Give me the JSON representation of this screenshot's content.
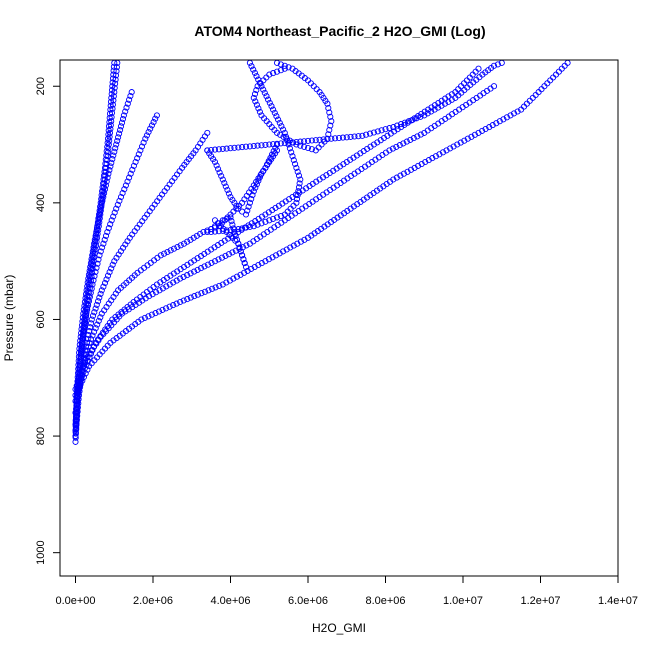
{
  "chart_data": {
    "type": "scatter",
    "title": "ATOM4 Northeast_Pacific_2 H2O_GMI (Log)",
    "xlabel": "H2O_GMI",
    "ylabel": "Pressure (mbar)",
    "xlim": [
      -400000,
      14000000
    ],
    "ylim": [
      1040,
      155
    ],
    "y_reversed": true,
    "x_ticks": [
      0,
      2000000,
      4000000,
      6000000,
      8000000,
      10000000,
      12000000,
      14000000
    ],
    "x_tick_labels": [
      "0.0e+00",
      "2.0e+06",
      "4.0e+06",
      "6.0e+06",
      "8.0e+06",
      "1.0e+07",
      "1.2e+07",
      "1.4e+07"
    ],
    "y_ticks": [
      200,
      400,
      600,
      800,
      1000
    ],
    "y_tick_labels": [
      "200",
      "400",
      "600",
      "800",
      "1000"
    ],
    "marker": "open-circle",
    "color": "#0000ff",
    "grid": false,
    "series": [
      {
        "x": [
          0,
          40000,
          90000,
          160000,
          260000,
          380000,
          520000,
          650000,
          760000,
          840000,
          900000,
          950000,
          1000000
        ],
        "y": [
          810,
          760,
          700,
          640,
          580,
          520,
          460,
          400,
          340,
          290,
          240,
          200,
          160
        ]
      },
      {
        "x": [
          0,
          50000,
          120000,
          220000,
          340000,
          470000,
          600000,
          720000,
          830000,
          920000,
          1000000,
          1080000
        ],
        "y": [
          800,
          740,
          680,
          620,
          560,
          500,
          440,
          380,
          320,
          260,
          210,
          160
        ]
      },
      {
        "x": [
          0,
          40000,
          100000,
          200000,
          330000,
          480000,
          650000,
          850000,
          1050000,
          1250000,
          1450000
        ],
        "y": [
          790,
          720,
          650,
          590,
          530,
          470,
          410,
          350,
          300,
          250,
          210
        ]
      },
      {
        "x": [
          0,
          60000,
          150000,
          280000,
          440000,
          620000,
          820000,
          1050000,
          1300000,
          1550000,
          1800000,
          2100000
        ],
        "y": [
          780,
          710,
          650,
          590,
          540,
          490,
          450,
          410,
          370,
          330,
          290,
          250
        ]
      },
      {
        "x": [
          0,
          90000,
          230000,
          420000,
          680000,
          1000000,
          1400000,
          1850000,
          2300000,
          2750000,
          3100000,
          3400000
        ],
        "y": [
          800,
          730,
          660,
          600,
          550,
          500,
          460,
          420,
          380,
          340,
          310,
          280
        ]
      },
      {
        "x": [
          0,
          140000,
          360000,
          680000,
          1100000,
          1600000,
          2200000,
          2800000,
          3300000,
          3700000,
          4000000,
          4300000,
          4600000,
          4900000,
          5200000
        ],
        "y": [
          760,
          700,
          640,
          590,
          550,
          520,
          490,
          470,
          450,
          440,
          420,
          400,
          370,
          340,
          300
        ]
      },
      {
        "x": [
          0,
          200000,
          520000,
          950000,
          1500000,
          2100000,
          2800000,
          3500000,
          4200000,
          4900000,
          5600000,
          6300000,
          7000000,
          7700000,
          8400000,
          9100000,
          9800000,
          10400000
        ],
        "y": [
          740,
          690,
          640,
          600,
          570,
          540,
          510,
          480,
          450,
          420,
          390,
          360,
          330,
          300,
          270,
          240,
          210,
          170
        ]
      },
      {
        "x": [
          0,
          250000,
          650000,
          1200000,
          1900000,
          2700000,
          3600000,
          4500000,
          5400000,
          6300000,
          7200000,
          8100000,
          9000000,
          9900000,
          10800000
        ],
        "y": [
          720,
          670,
          630,
          590,
          560,
          530,
          500,
          470,
          430,
          390,
          350,
          310,
          280,
          240,
          200
        ]
      },
      {
        "x": [
          0,
          350000,
          900000,
          1700000,
          2700000,
          3800000,
          4900000,
          6000000,
          7100000,
          8200000,
          9300000,
          10400000,
          11500000,
          12700000
        ],
        "y": [
          730,
          680,
          640,
          600,
          570,
          540,
          500,
          460,
          410,
          360,
          320,
          280,
          240,
          160
        ]
      },
      {
        "x": [
          3400000,
          4200000,
          5000000,
          5800000,
          6600000,
          7400000,
          8200000,
          9000000,
          9800000,
          10500000,
          10800000,
          11000000
        ],
        "y": [
          310,
          305,
          300,
          295,
          290,
          285,
          270,
          250,
          220,
          180,
          165,
          160
        ]
      },
      {
        "x": [
          5200000,
          5600000,
          6000000,
          6300000,
          6500000,
          6600000,
          6500000,
          6200000,
          5700000,
          5200000,
          4800000,
          4600000,
          4700000,
          5000000,
          5400000
        ],
        "y": [
          160,
          170,
          190,
          210,
          230,
          260,
          290,
          310,
          300,
          280,
          250,
          220,
          200,
          180,
          170
        ]
      },
      {
        "x": [
          4500000,
          4800000,
          5100000,
          5400000,
          5600000,
          5800000,
          5700000,
          5400000,
          5000000,
          4600000,
          4200000,
          3800000,
          3500000
        ],
        "y": [
          160,
          200,
          240,
          280,
          320,
          360,
          400,
          420,
          430,
          440,
          445,
          448,
          450
        ]
      },
      {
        "x": [
          3400000,
          3600000,
          3800000,
          4000000,
          4100000,
          4200000,
          4300000,
          4400000,
          4200000,
          3900000,
          3600000
        ],
        "y": [
          450,
          440,
          430,
          425,
          450,
          470,
          490,
          510,
          470,
          450,
          430
        ]
      },
      {
        "x": [
          3400000,
          3600000,
          3800000,
          4000000,
          4200000,
          4400000,
          4600000,
          4800000,
          5000000,
          5200000
        ],
        "y": [
          310,
          330,
          360,
          390,
          410,
          420,
          380,
          350,
          330,
          310
        ]
      }
    ]
  }
}
